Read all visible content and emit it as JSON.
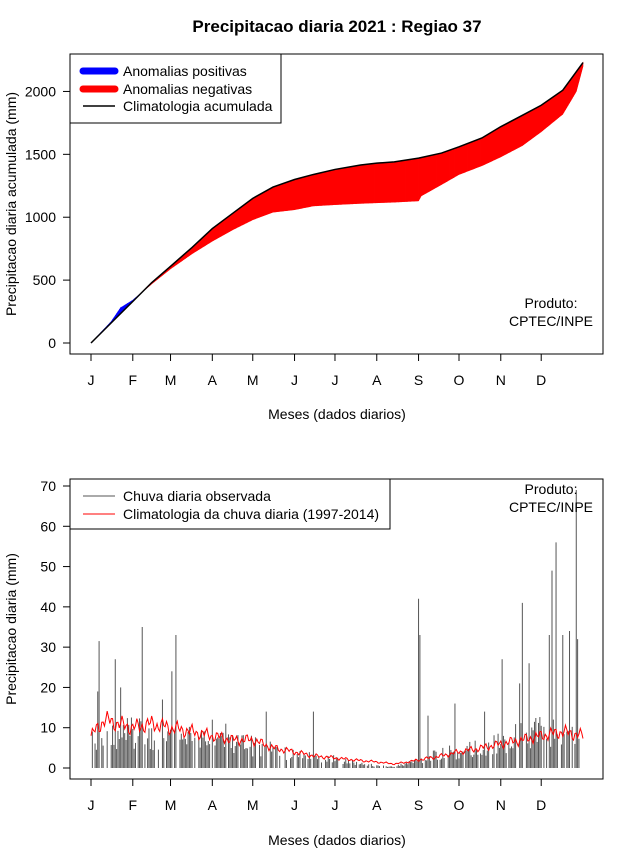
{
  "title": "Precipitacao diaria 2021 : Regiao 37",
  "credit": [
    "Produto:",
    "CPTEC/INPE"
  ],
  "months": [
    "J",
    "F",
    "M",
    "A",
    "M",
    "J",
    "J",
    "A",
    "S",
    "O",
    "N",
    "D"
  ],
  "chart_data": [
    {
      "type": "area",
      "name": "accumulated",
      "ylabel": "Precipitacao diaria acumulada (mm)",
      "xlabel": "Meses (dados diarios)",
      "xlim": [
        0,
        365
      ],
      "ylim": [
        0,
        2250
      ],
      "yticks": [
        0,
        500,
        1000,
        1500,
        2000
      ],
      "legend": {
        "position": "top-left",
        "entries": [
          {
            "label": "Anomalias positivas",
            "color": "#0000ff"
          },
          {
            "label": "Anomalias negativas",
            "color": "#ff0000"
          },
          {
            "label": "Climatologia acumulada",
            "color": "#000000"
          }
        ]
      },
      "climatology_points": [
        [
          0,
          0
        ],
        [
          15,
          160
        ],
        [
          31,
          330
        ],
        [
          45,
          480
        ],
        [
          59,
          610
        ],
        [
          75,
          760
        ],
        [
          90,
          910
        ],
        [
          105,
          1030
        ],
        [
          120,
          1150
        ],
        [
          135,
          1240
        ],
        [
          151,
          1300
        ],
        [
          165,
          1340
        ],
        [
          181,
          1380
        ],
        [
          200,
          1415
        ],
        [
          212,
          1430
        ],
        [
          225,
          1440
        ],
        [
          243,
          1470
        ],
        [
          260,
          1510
        ],
        [
          273,
          1560
        ],
        [
          290,
          1630
        ],
        [
          304,
          1720
        ],
        [
          320,
          1810
        ],
        [
          334,
          1890
        ],
        [
          350,
          2010
        ],
        [
          365,
          2230
        ]
      ],
      "observed_points": [
        [
          0,
          0
        ],
        [
          15,
          170
        ],
        [
          22,
          280
        ],
        [
          31,
          340
        ],
        [
          45,
          470
        ],
        [
          59,
          590
        ],
        [
          75,
          710
        ],
        [
          90,
          810
        ],
        [
          105,
          900
        ],
        [
          120,
          980
        ],
        [
          135,
          1040
        ],
        [
          151,
          1060
        ],
        [
          165,
          1090
        ],
        [
          181,
          1100
        ],
        [
          200,
          1110
        ],
        [
          212,
          1115
        ],
        [
          225,
          1120
        ],
        [
          243,
          1130
        ],
        [
          245,
          1170
        ],
        [
          260,
          1260
        ],
        [
          273,
          1340
        ],
        [
          290,
          1410
        ],
        [
          304,
          1480
        ],
        [
          320,
          1570
        ],
        [
          334,
          1680
        ],
        [
          350,
          1820
        ],
        [
          360,
          2000
        ],
        [
          365,
          2200
        ]
      ]
    },
    {
      "type": "bar",
      "name": "daily",
      "ylabel": "Precipitacao diaria (mm)",
      "xlabel": "Meses (dados diarios)",
      "xlim": [
        0,
        365
      ],
      "ylim": [
        0,
        70
      ],
      "yticks": [
        0,
        10,
        20,
        30,
        40,
        50,
        60,
        70
      ],
      "legend": {
        "position": "top-left",
        "entries": [
          {
            "label": "Chuva diaria observada",
            "color": "#555555"
          },
          {
            "label": "Climatologia da chuva diaria (1997-2014)",
            "color": "#ff0000"
          }
        ]
      },
      "observed_spikes": [
        [
          5,
          19
        ],
        [
          6,
          31.5
        ],
        [
          18,
          27
        ],
        [
          22,
          20
        ],
        [
          38,
          35
        ],
        [
          53,
          17
        ],
        [
          60,
          24
        ],
        [
          63,
          33
        ],
        [
          90,
          12
        ],
        [
          100,
          11
        ],
        [
          130,
          14
        ],
        [
          165,
          14
        ],
        [
          243,
          42
        ],
        [
          244,
          33
        ],
        [
          250,
          13
        ],
        [
          270,
          16
        ],
        [
          292,
          14
        ],
        [
          305,
          27
        ],
        [
          318,
          21
        ],
        [
          320,
          41
        ],
        [
          325,
          26
        ],
        [
          340,
          33
        ],
        [
          342,
          49
        ],
        [
          345,
          56
        ],
        [
          350,
          33
        ],
        [
          355,
          34
        ],
        [
          360,
          69
        ],
        [
          361,
          32
        ]
      ],
      "observed_baseline": [
        [
          0,
          6
        ],
        [
          31,
          8
        ],
        [
          59,
          7
        ],
        [
          90,
          6
        ],
        [
          120,
          5
        ],
        [
          151,
          3
        ],
        [
          181,
          2
        ],
        [
          200,
          1
        ],
        [
          212,
          0.5
        ],
        [
          225,
          0.3
        ],
        [
          243,
          2
        ],
        [
          273,
          4
        ],
        [
          304,
          6
        ],
        [
          334,
          9
        ],
        [
          365,
          8
        ]
      ],
      "climatology_points": [
        [
          0,
          8
        ],
        [
          10,
          12
        ],
        [
          20,
          11
        ],
        [
          31,
          10
        ],
        [
          45,
          11
        ],
        [
          59,
          10
        ],
        [
          75,
          9
        ],
        [
          90,
          8
        ],
        [
          105,
          7
        ],
        [
          120,
          7
        ],
        [
          135,
          5
        ],
        [
          151,
          4
        ],
        [
          165,
          3
        ],
        [
          181,
          2.5
        ],
        [
          195,
          2
        ],
        [
          212,
          1.5
        ],
        [
          225,
          1
        ],
        [
          235,
          1.5
        ],
        [
          243,
          2
        ],
        [
          260,
          3
        ],
        [
          273,
          4
        ],
        [
          290,
          5
        ],
        [
          304,
          6
        ],
        [
          320,
          7
        ],
        [
          334,
          8
        ],
        [
          350,
          9
        ],
        [
          365,
          8
        ]
      ]
    }
  ]
}
